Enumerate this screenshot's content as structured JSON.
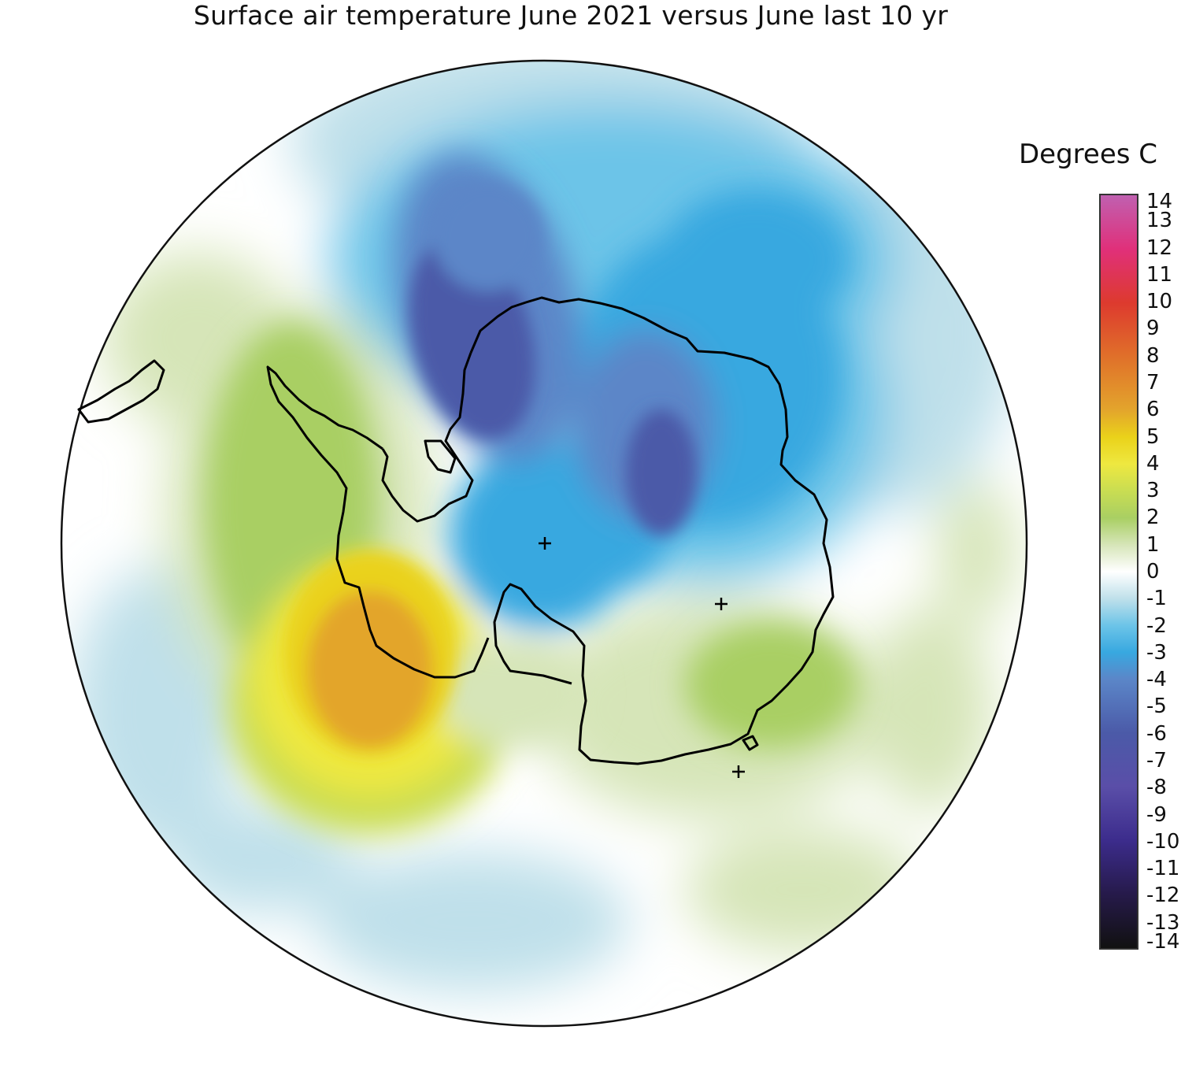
{
  "title": "Surface air temperature June 2021 versus June last 10 yr",
  "legend": {
    "title": "Degrees C",
    "ticks": [
      "14",
      "13",
      "12",
      "11",
      "10",
      "9",
      "8",
      "7",
      "6",
      "5",
      "4",
      "3",
      "2",
      "1",
      "0",
      "-1",
      "-2",
      "-3",
      "-4",
      "-5",
      "-6",
      "-7",
      "-8",
      "-9",
      "-10",
      "-11",
      "-12",
      "-13",
      "-14"
    ],
    "range": [
      -14,
      14
    ],
    "colors": {
      "14": "#c060b0",
      "12": "#e0307a",
      "10": "#dd3a2e",
      "8": "#e0702a",
      "6": "#e3a52c",
      "5": "#ead21a",
      "4": "#eee840",
      "3": "#c9dd52",
      "2": "#a9cf63",
      "1": "#d6e5b8",
      "0": "#ffffff",
      "-1": "#bfe0ea",
      "-2": "#6cc4e8",
      "-3": "#38a8e0",
      "-4": "#5b86c8",
      "-6": "#4b5aa8",
      "-8": "#5a4ea8",
      "-10": "#3c2c8c",
      "-12": "#261a4a",
      "-14": "#111111"
    }
  },
  "map": {
    "projection": "south polar stereographic",
    "markers": [
      "+",
      "+",
      "+"
    ]
  }
}
